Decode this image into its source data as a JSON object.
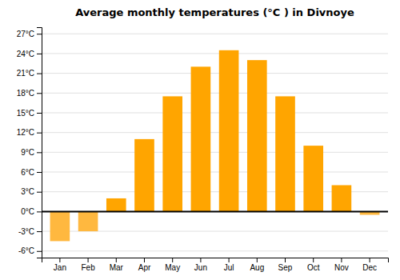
{
  "chart_data": {
    "type": "bar",
    "title": "Average monthly temperatures (°C ) in Divnoye",
    "categories": [
      "Jan",
      "Feb",
      "Mar",
      "Apr",
      "May",
      "Jun",
      "Jul",
      "Aug",
      "Sep",
      "Oct",
      "Nov",
      "Dec"
    ],
    "values": [
      -4.5,
      -3.0,
      2.0,
      11.0,
      17.5,
      22.0,
      24.5,
      23.0,
      17.5,
      10.0,
      4.0,
      -0.5
    ],
    "colors": [
      "#FFB83F",
      "#FFB83F",
      "#FFA500",
      "#FFA500",
      "#FFA500",
      "#FFA500",
      "#FFA500",
      "#FFA500",
      "#FFA500",
      "#FFA500",
      "#FFA500",
      "#FFB83F"
    ],
    "ylim": [
      -7,
      28
    ],
    "yticks": [
      {
        "value": -6,
        "label": "-6°C"
      },
      {
        "value": -3,
        "label": "-3°C"
      },
      {
        "value": 0,
        "label": "0°C"
      },
      {
        "value": 3,
        "label": "3°C"
      },
      {
        "value": 6,
        "label": "6°C"
      },
      {
        "value": 9,
        "label": "9°C"
      },
      {
        "value": 12,
        "label": "12°C"
      },
      {
        "value": 15,
        "label": "15°C"
      },
      {
        "value": 18,
        "label": "18°C"
      },
      {
        "value": 21,
        "label": "21°C"
      },
      {
        "value": 24,
        "label": "24°C"
      },
      {
        "value": 27,
        "label": "27°C"
      }
    ],
    "grid": true
  }
}
